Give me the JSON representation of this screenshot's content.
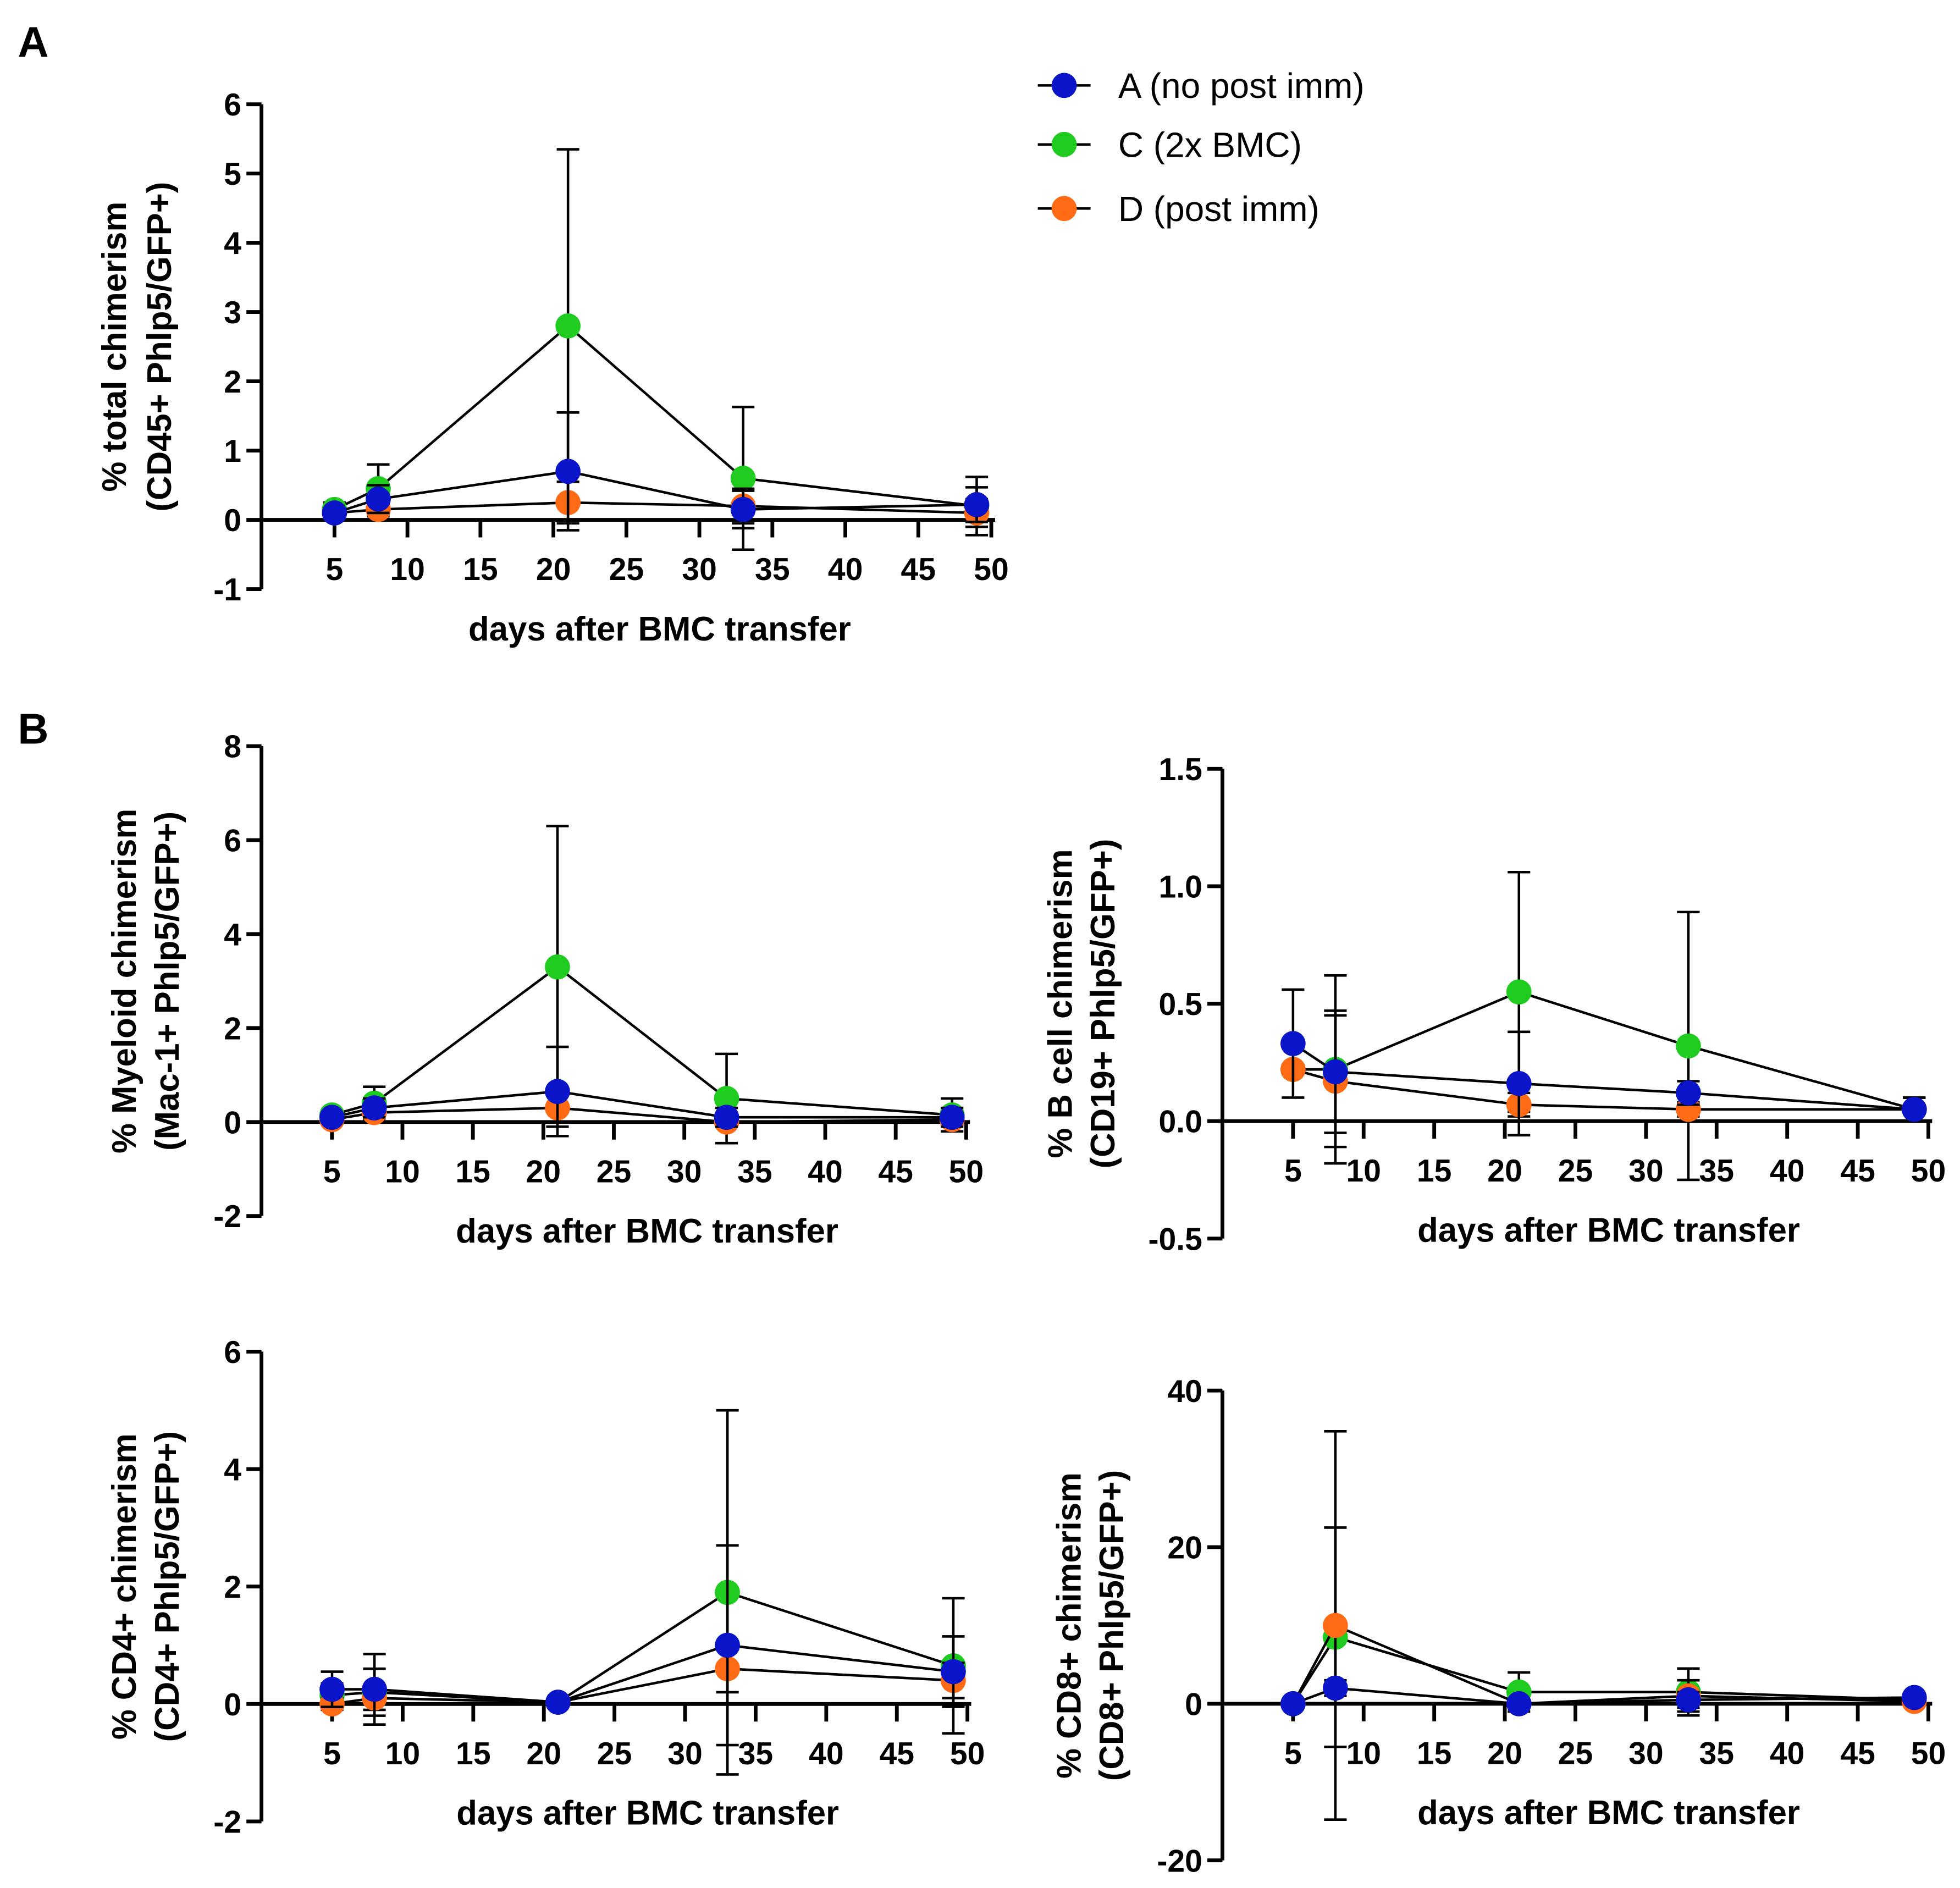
{
  "panel_labels": [
    "A",
    "B"
  ],
  "legend": [
    {
      "name": "A (no post imm)",
      "color": "#0a14c8"
    },
    {
      "name": "C (2x BMC)",
      "color": "#1ecb1e"
    },
    {
      "name": "D (post imm)",
      "color": "#ff6a14"
    }
  ],
  "chart_data": [
    {
      "type": "line",
      "panel": "A",
      "xlabel": "days after  BMC transfer",
      "ylabel": [
        "% total chimerism",
        "(CD45+ Phlp5/GFP+)"
      ],
      "x": [
        5,
        8,
        21,
        33,
        49
      ],
      "xlim": [
        0,
        50
      ],
      "xticks": [
        5,
        10,
        15,
        20,
        25,
        30,
        35,
        40,
        45,
        50
      ],
      "ylim": [
        -1,
        6
      ],
      "yticks": [
        "-1",
        "0",
        "1",
        "2",
        "3",
        "4",
        "5",
        "6"
      ],
      "grid": false,
      "error_bars": true,
      "series": [
        {
          "name": "C (2x BMC)",
          "values": [
            0.15,
            0.45,
            2.8,
            0.6,
            0.2
          ],
          "error": [
            0.1,
            0.35,
            2.55,
            1.03,
            0.42
          ]
        },
        {
          "name": "D (post imm)",
          "values": [
            0.1,
            0.15,
            0.25,
            0.2,
            0.1
          ],
          "error": [
            0.05,
            0.1,
            0.3,
            0.25,
            0.2
          ]
        },
        {
          "name": "A (no post imm)",
          "values": [
            0.1,
            0.3,
            0.7,
            0.15,
            0.22
          ],
          "error": [
            0.05,
            0.2,
            0.85,
            0.27,
            0.25
          ]
        }
      ]
    },
    {
      "type": "line",
      "panel": "B",
      "xlabel": "days after  BMC transfer",
      "ylabel": [
        "% Myeloid chimerism",
        "(Mac-1+ Phlp5/GFP+)"
      ],
      "x": [
        5,
        8,
        21,
        33,
        49
      ],
      "xlim": [
        0,
        50
      ],
      "xticks": [
        5,
        10,
        15,
        20,
        25,
        30,
        35,
        40,
        45,
        50
      ],
      "ylim": [
        -2,
        8
      ],
      "yticks": [
        "-2",
        "0",
        "2",
        "4",
        "6",
        "8"
      ],
      "grid": false,
      "error_bars": true,
      "series": [
        {
          "name": "C (2x BMC)",
          "values": [
            0.15,
            0.4,
            3.3,
            0.5,
            0.15
          ],
          "error": [
            0.1,
            0.35,
            3.0,
            0.95,
            0.35
          ]
        },
        {
          "name": "D (post imm)",
          "values": [
            0.05,
            0.2,
            0.3,
            0.0,
            0.05
          ],
          "error": [
            0.05,
            0.1,
            0.4,
            0.1,
            0.1
          ]
        },
        {
          "name": "A (no post imm)",
          "values": [
            0.1,
            0.3,
            0.65,
            0.1,
            0.1
          ],
          "error": [
            0.05,
            0.2,
            0.95,
            0.2,
            0.2
          ]
        }
      ]
    },
    {
      "type": "line",
      "panel": "B",
      "xlabel": "days after  BMC transfer",
      "ylabel": [
        "% B cell chimerism",
        "(CD19+ Phlp5/GFP+)"
      ],
      "x": [
        5,
        8,
        21,
        33,
        49
      ],
      "xlim": [
        0,
        50
      ],
      "xticks": [
        5,
        10,
        15,
        20,
        25,
        30,
        35,
        40,
        45,
        50
      ],
      "ylim": [
        -0.5,
        1.5
      ],
      "yticks": [
        "-0.5",
        "0.0",
        "0.5",
        "1.0",
        "1.5"
      ],
      "grid": false,
      "error_bars": true,
      "series": [
        {
          "name": "C (2x BMC)",
          "values": [
            0.22,
            0.22,
            0.55,
            0.32,
            0.05
          ],
          "error": [
            0.02,
            0.4,
            0.51,
            0.57,
            0.05
          ]
        },
        {
          "name": "D (post imm)",
          "values": [
            0.22,
            0.17,
            0.07,
            0.05,
            0.05
          ],
          "error": [
            0.02,
            0.28,
            0.05,
            0.03,
            0.05
          ]
        },
        {
          "name": "A (no post imm)",
          "values": [
            0.33,
            0.21,
            0.16,
            0.12,
            0.05
          ],
          "error": [
            0.23,
            0.26,
            0.22,
            0.05,
            0.05
          ]
        }
      ]
    },
    {
      "type": "line",
      "panel": "B",
      "xlabel": "days after  BMC transfer",
      "ylabel": [
        "% CD4+ chimerism",
        "(CD4+ Phlp5/GFP+)"
      ],
      "x": [
        5,
        8,
        21,
        33,
        49
      ],
      "xlim": [
        0,
        50
      ],
      "xticks": [
        5,
        10,
        15,
        20,
        25,
        30,
        35,
        40,
        45,
        50
      ],
      "ylim": [
        -2,
        6
      ],
      "yticks": [
        "-2",
        "0",
        "2",
        "4",
        "6"
      ],
      "grid": false,
      "error_bars": true,
      "series": [
        {
          "name": "C (2x BMC)",
          "values": [
            0.15,
            0.2,
            0.03,
            1.9,
            0.65
          ],
          "error": [
            0.2,
            0.4,
            0.02,
            3.1,
            1.15
          ]
        },
        {
          "name": "D (post imm)",
          "values": [
            0.0,
            0.1,
            0.03,
            0.6,
            0.4
          ],
          "error": [
            0.1,
            0.2,
            0.02,
            0.4,
            0.3
          ]
        },
        {
          "name": "A (no post imm)",
          "values": [
            0.25,
            0.25,
            0.03,
            1.0,
            0.55
          ],
          "error": [
            0.3,
            0.6,
            0.02,
            1.7,
            0.6
          ]
        }
      ]
    },
    {
      "type": "line",
      "panel": "B",
      "xlabel": "days after  BMC transfer",
      "ylabel": [
        "% CD8+ chimerism",
        "(CD8+ Phlp5/GFP+)"
      ],
      "x": [
        5,
        8,
        21,
        33,
        49
      ],
      "xlim": [
        0,
        50
      ],
      "xticks": [
        5,
        10,
        15,
        20,
        25,
        30,
        35,
        40,
        45,
        50
      ],
      "ylim": [
        -20,
        40
      ],
      "yticks": [
        "-20",
        "0",
        "20",
        "40"
      ],
      "grid": false,
      "error_bars": true,
      "series": [
        {
          "name": "C (2x BMC)",
          "values": [
            0,
            8.5,
            1.5,
            1.5,
            0.5
          ],
          "error": [
            0.2,
            14,
            2.5,
            3,
            0.5
          ]
        },
        {
          "name": "D (post imm)",
          "values": [
            0,
            10,
            0,
            1,
            0.3
          ],
          "error": [
            0.2,
            24.8,
            0.5,
            2,
            0.3
          ]
        },
        {
          "name": "A (no post imm)",
          "values": [
            0,
            2,
            0,
            0.5,
            0.8
          ],
          "error": [
            0.2,
            1,
            0.3,
            1,
            0.5
          ]
        }
      ]
    }
  ]
}
